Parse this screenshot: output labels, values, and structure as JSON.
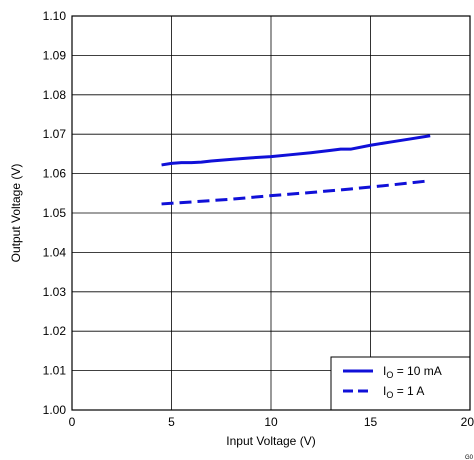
{
  "chart_data": {
    "type": "line",
    "xlabel": "Input Voltage (V)",
    "ylabel": "Output Voltage (V)",
    "xlim": [
      0,
      20
    ],
    "ylim": [
      1.0,
      1.1
    ],
    "x_ticks": [
      "0",
      "5",
      "10",
      "15",
      "20"
    ],
    "y_ticks": [
      "1.00",
      "1.01",
      "1.02",
      "1.03",
      "1.04",
      "1.05",
      "1.06",
      "1.07",
      "1.08",
      "1.09",
      "1.10"
    ],
    "grid": true,
    "legend_position": "bottom-right",
    "legend_prefix": "I",
    "legend_sub": "O",
    "series": [
      {
        "name": "IO = 10 mA",
        "legend_value": "= 10 mA",
        "style": "solid",
        "color": "#1010d8",
        "x": [
          4.5,
          5.0,
          5.5,
          6.0,
          6.5,
          7.0,
          8.0,
          9.0,
          10.0,
          11.0,
          12.0,
          13.0,
          13.5,
          14.0,
          15.0,
          16.0,
          17.0,
          18.0
        ],
        "y": [
          1.0622,
          1.0626,
          1.0628,
          1.0628,
          1.0629,
          1.0632,
          1.0636,
          1.064,
          1.0643,
          1.0648,
          1.0653,
          1.0659,
          1.0662,
          1.0662,
          1.0672,
          1.068,
          1.0688,
          1.0696
        ]
      },
      {
        "name": "IO = 1 A",
        "legend_value": "= 1 A",
        "style": "dashed",
        "color": "#1010d8",
        "x": [
          4.5,
          6.0,
          8.0,
          10.0,
          12.0,
          14.0,
          16.0,
          18.0
        ],
        "y": [
          1.0523,
          1.0528,
          1.0535,
          1.0544,
          1.0552,
          1.0561,
          1.0571,
          1.0582
        ]
      }
    ],
    "watermark": "G0"
  }
}
